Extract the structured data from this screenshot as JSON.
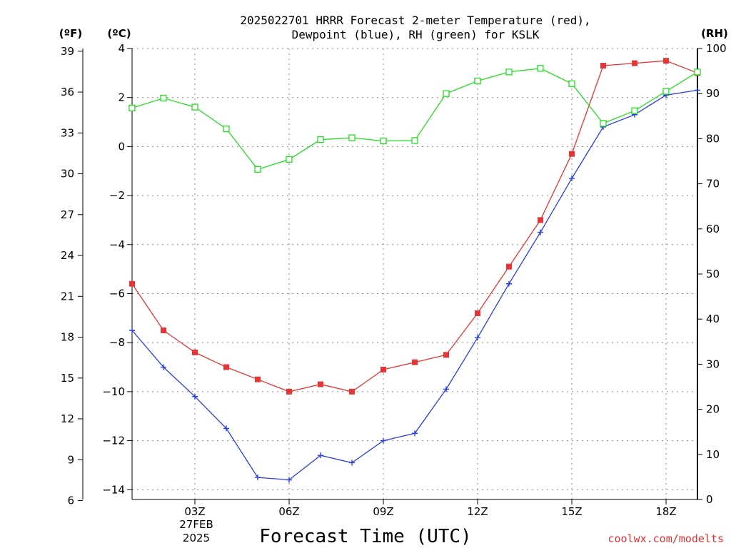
{
  "chart_data": {
    "type": "line",
    "title_lines": [
      "2025022701 HRRR Forecast 2-meter Temperature (red),",
      "Dewpoint (blue), RH (green) for KSLK"
    ],
    "xlabel": "Forecast Time (UTC)",
    "left_outer_unit": "(ºF)",
    "left_inner_unit": "(ºC)",
    "right_unit": "(RH)",
    "credit": "coolwx.com/modelts",
    "x_hours": [
      1,
      2,
      3,
      4,
      5,
      6,
      7,
      8,
      9,
      10,
      11,
      12,
      13,
      14,
      15,
      16,
      17,
      18,
      19
    ],
    "x_range": [
      1,
      19
    ],
    "x_ticks": [
      {
        "hour": 3,
        "label": "03Z"
      },
      {
        "hour": 6,
        "label": "06Z"
      },
      {
        "hour": 9,
        "label": "09Z"
      },
      {
        "hour": 12,
        "label": "12Z"
      },
      {
        "hour": 15,
        "label": "15Z"
      },
      {
        "hour": 18,
        "label": "18Z"
      }
    ],
    "date_label": [
      "27FEB",
      "2025"
    ],
    "y_celsius": {
      "range": [
        -14.4,
        4.0
      ],
      "ticks": [
        4,
        2,
        0,
        -2,
        -4,
        -6,
        -8,
        -10,
        -12,
        -14
      ],
      "tick_labels": [
        "4",
        "2",
        "0",
        "−2",
        "−4",
        "−6",
        "−8",
        "−10",
        "−12",
        "−14"
      ]
    },
    "y_fahrenheit": {
      "ticks": [
        39,
        36,
        33,
        30,
        27,
        24,
        21,
        18,
        15,
        12,
        9,
        6
      ]
    },
    "y_rh": {
      "range": [
        0,
        100
      ],
      "ticks": [
        100,
        90,
        80,
        70,
        60,
        50,
        40,
        30,
        20,
        10,
        0
      ]
    },
    "series": [
      {
        "key": "temperature",
        "color": "#e83434",
        "marker": "filled-square",
        "axis": "celsius",
        "values": [
          -5.6,
          -7.5,
          -8.4,
          -9.0,
          -9.5,
          -10.0,
          -9.7,
          -10.0,
          -9.1,
          -8.8,
          -8.5,
          -6.8,
          -4.9,
          -3.0,
          -0.3,
          3.3,
          3.4,
          3.5,
          3.0
        ]
      },
      {
        "key": "dewpoint",
        "color": "#2a3ee0",
        "marker": "plus",
        "axis": "celsius",
        "values": [
          -7.5,
          -9.0,
          -10.2,
          -11.5,
          -13.5,
          -13.6,
          -12.6,
          -12.9,
          -12.0,
          -11.7,
          -9.9,
          -7.8,
          -5.6,
          -3.5,
          -1.3,
          0.8,
          1.3,
          2.1,
          2.3
        ]
      },
      {
        "key": "rh",
        "color": "#22dd22",
        "marker": "open-square",
        "axis": "rh",
        "values": [
          86.8,
          89.0,
          87.0,
          82.2,
          73.2,
          75.4,
          79.8,
          80.2,
          79.5,
          79.6,
          90.0,
          92.8,
          94.8,
          95.6,
          92.2,
          83.4,
          86.2,
          90.5,
          94.8
        ]
      }
    ]
  }
}
